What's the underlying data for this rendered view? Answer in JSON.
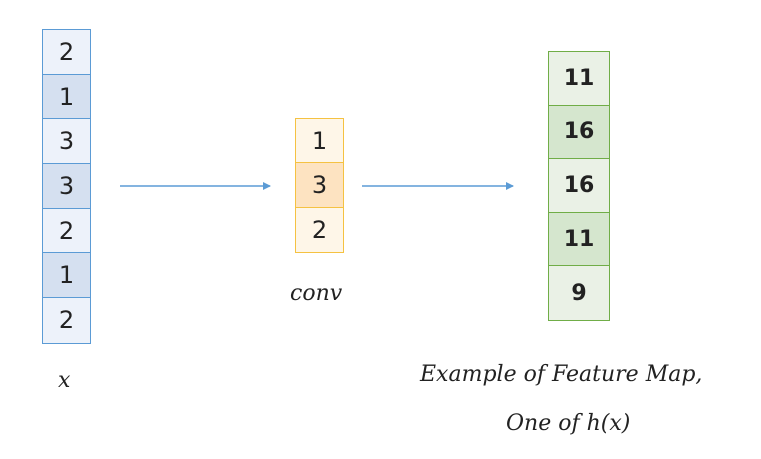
{
  "input": {
    "values": [
      "2",
      "1",
      "3",
      "3",
      "2",
      "1",
      "2"
    ],
    "label": "x",
    "colors": {
      "border": "#5b9bd5",
      "fill_light": "#edf2fa",
      "fill_dark": "#d5e0f0"
    }
  },
  "kernel": {
    "values": [
      "1",
      "3",
      "2"
    ],
    "label": "conv",
    "colors": {
      "border": "#f5c242",
      "fill_light": "#fef6e8",
      "fill_dark": "#fde3c1"
    }
  },
  "feature_map": {
    "values": [
      "11",
      "16",
      "16",
      "11",
      "9"
    ],
    "caption_line1": "Example of Feature Map,",
    "caption_line2": "One of h(x)",
    "colors": {
      "border": "#70ad47",
      "fill_light": "#eaf1e6",
      "fill_dark": "#d5e6ce"
    }
  },
  "arrow_color": "#5b9bd5"
}
